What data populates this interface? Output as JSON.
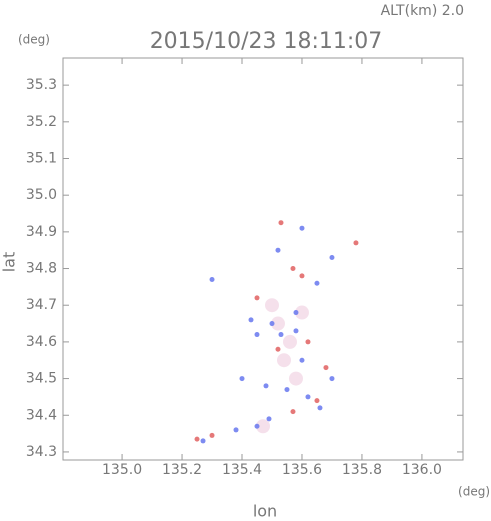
{
  "chart_data": {
    "type": "scatter",
    "title": "2015/10/23 18:11:07",
    "altitude_label": "ALT(km) 2.0",
    "y_unit": "(deg)",
    "x_unit": "(deg)",
    "x_label": "lon",
    "y_label": "lat",
    "xlim": [
      134.803,
      136.137
    ],
    "ylim": [
      34.278,
      35.374
    ],
    "xticks": [
      {
        "value": 135,
        "label": "135.0"
      },
      135.2,
      135.4,
      135.6,
      135.8,
      {
        "value": 136,
        "label": "136.0"
      }
    ],
    "yticks": [
      34.3,
      34.4,
      34.5,
      34.6,
      34.7,
      34.8,
      34.9,
      {
        "value": 35,
        "label": "35.0"
      },
      35.1,
      35.2,
      35.3
    ],
    "series": [
      {
        "color": "#f3dbe8",
        "x": [
          135.52,
          135.56,
          135.5,
          135.58,
          135.47,
          135.6,
          135.54
        ],
        "values": [
          34.65,
          34.6,
          34.7,
          34.5,
          34.37,
          34.68,
          34.55
        ]
      },
      {
        "color": "#6677ee",
        "x": [
          135.27,
          135.38,
          135.45,
          135.49,
          135.6,
          135.52,
          135.65,
          135.7,
          135.43,
          135.5,
          135.58,
          135.48,
          135.55,
          135.62,
          135.7,
          135.45,
          135.6,
          135.66,
          135.4,
          135.3,
          135.53,
          135.58
        ],
        "values": [
          34.33,
          34.36,
          34.37,
          34.39,
          34.91,
          34.85,
          34.76,
          34.83,
          34.66,
          34.65,
          34.68,
          34.48,
          34.47,
          34.45,
          34.5,
          34.62,
          34.55,
          34.42,
          34.5,
          34.77,
          34.62,
          34.63
        ]
      },
      {
        "color": "#e06060",
        "x": [
          135.25,
          135.3,
          135.53,
          135.57,
          135.6,
          135.45,
          135.52,
          135.57,
          135.65,
          135.62,
          135.68,
          135.78
        ],
        "values": [
          34.335,
          34.345,
          34.925,
          34.8,
          34.78,
          34.72,
          34.58,
          34.41,
          34.44,
          34.6,
          34.53,
          34.87
        ]
      }
    ]
  }
}
